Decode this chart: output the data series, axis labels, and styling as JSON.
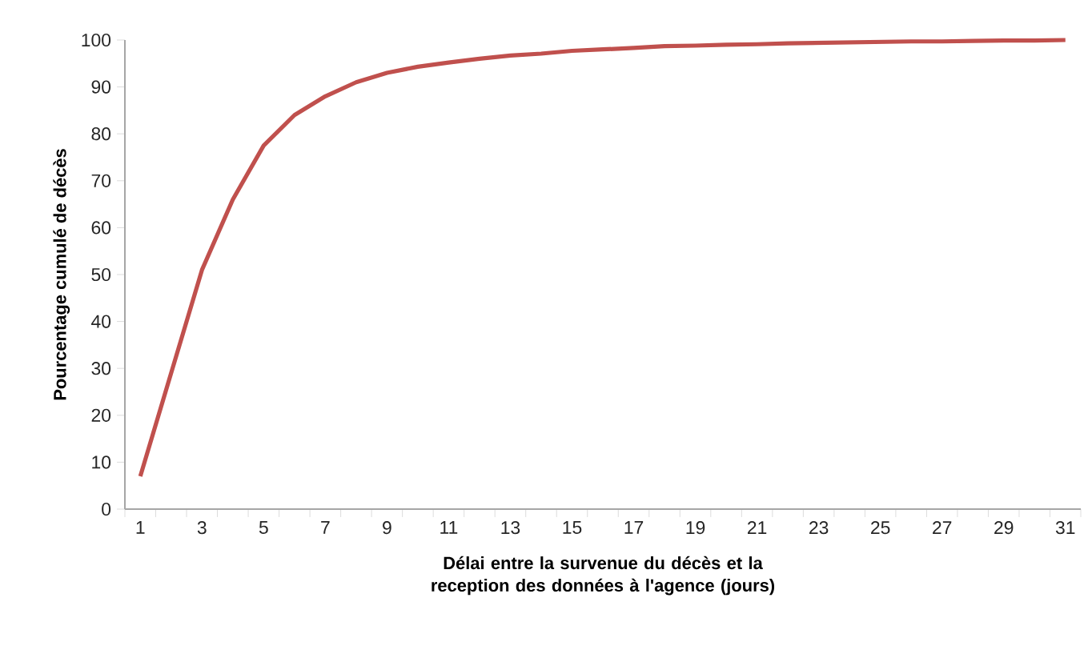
{
  "chart_data": {
    "type": "line",
    "xlabel": "Délai entre la survenue du décès et la reception des données à l'agence (jours)",
    "ylabel": "Pourcentage cumulé de décès",
    "categories": [
      "1",
      null,
      "3",
      null,
      "5",
      null,
      "7",
      null,
      "9",
      null,
      "11",
      null,
      "13",
      null,
      "15",
      null,
      "17",
      null,
      "19",
      null,
      "21",
      null,
      "23",
      null,
      "25",
      null,
      "27",
      null,
      "29",
      null,
      "31"
    ],
    "series": [
      {
        "color": "#c0504d",
        "values": [
          7,
          29,
          51,
          66,
          77.5,
          84,
          88,
          91,
          93,
          94.3,
          95.2,
          96,
          96.7,
          97.1,
          97.7,
          98,
          98.3,
          98.7,
          98.8,
          99,
          99.1,
          99.3,
          99.4,
          99.5,
          99.6,
          99.7,
          99.7,
          99.8,
          99.9,
          99.9,
          100
        ]
      }
    ],
    "ylim": [
      0,
      100
    ],
    "yticks": [
      0,
      10,
      20,
      30,
      40,
      50,
      60,
      70,
      80,
      90,
      100
    ],
    "grid": false,
    "marker": "none",
    "line_style": "solid"
  }
}
